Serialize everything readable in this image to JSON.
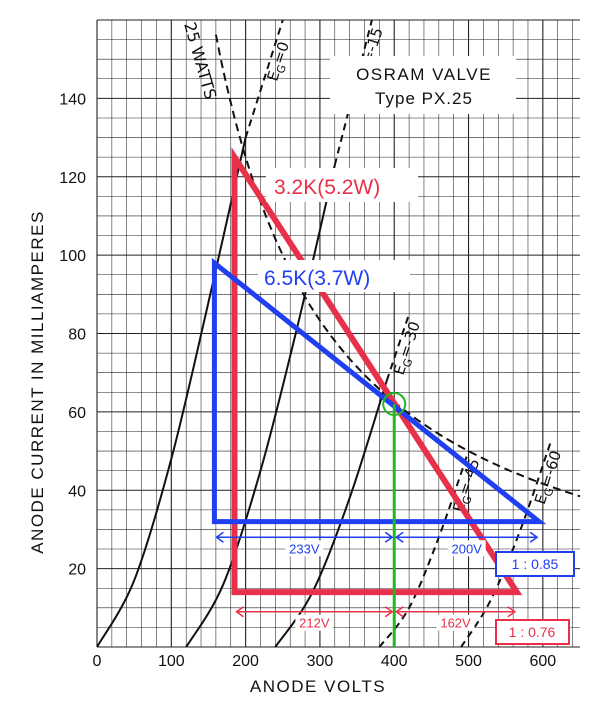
{
  "chart_data": {
    "type": "line",
    "title": "OSRAM VALVE",
    "subtitle": "Type PX.25",
    "xlabel": "ANODE VOLTS",
    "ylabel": "ANODE CURRENT IN MILLIAMPERES",
    "xlim": [
      0,
      650
    ],
    "ylim": [
      0,
      160
    ],
    "x_ticks": [
      "0",
      "100",
      "200",
      "300",
      "400",
      "500",
      "600"
    ],
    "y_ticks": [
      "20",
      "40",
      "60",
      "80",
      "100",
      "120",
      "140"
    ],
    "grid": true,
    "dissipation_curve": {
      "label": "25 WATTS",
      "watts": 25
    },
    "series": [
      {
        "name": "EG=0",
        "label_prefix": "E",
        "label_sub": "G",
        "label_value": "=0",
        "style": "solid-then-dashed",
        "x": [
          0,
          50,
          100,
          150,
          200,
          250
        ],
        "y": [
          0,
          17,
          48,
          88,
          130,
          160
        ]
      },
      {
        "name": "EG=-15",
        "label_prefix": "E",
        "label_sub": "G",
        "label_value": "=-15",
        "style": "solid-then-dashed",
        "x": [
          120,
          170,
          220,
          270,
          320,
          370
        ],
        "y": [
          0,
          16,
          45,
          82,
          123,
          160
        ]
      },
      {
        "name": "EG=-30",
        "label_prefix": "E",
        "label_sub": "G",
        "label_value": "=-30",
        "style": "solid-then-dashed",
        "x": [
          240,
          290,
          340,
          390,
          420
        ],
        "y": [
          0,
          14,
          38,
          68,
          85
        ]
      },
      {
        "name": "EG=-45",
        "label_prefix": "E",
        "label_sub": "G",
        "label_value": "=-45",
        "style": "dashed",
        "x": [
          380,
          420,
          460,
          500
        ],
        "y": [
          0,
          10,
          28,
          50
        ]
      },
      {
        "name": "EG=-60",
        "label_prefix": "E",
        "label_sub": "G",
        "label_value": "=-60",
        "style": "dashed",
        "x": [
          490,
          530,
          570,
          610
        ],
        "y": [
          0,
          12,
          30,
          52
        ]
      }
    ],
    "load_lines": [
      {
        "label": "3.2K(5.2W)",
        "color": "#e8304a",
        "apex": [
          185,
          125
        ],
        "base_left": [
          185,
          14
        ],
        "base_right": [
          565,
          14
        ]
      },
      {
        "label": "6.5K(3.7W)",
        "color": "#1f3ff0",
        "apex": [
          158,
          98
        ],
        "base_left": [
          158,
          32
        ],
        "base_right": [
          595,
          32
        ]
      }
    ],
    "operating_point": {
      "x": 400,
      "y": 62,
      "color": "#22b822"
    },
    "dimensions": [
      {
        "color": "#1f3ff0",
        "y": 28,
        "segments": [
          {
            "from": 158,
            "to": 400,
            "label": "233V"
          },
          {
            "from": 400,
            "to": 595,
            "label": "200V"
          }
        ],
        "ratio": "1 : 0.85"
      },
      {
        "color": "#e8304a",
        "y": 9,
        "segments": [
          {
            "from": 185,
            "to": 400,
            "label": "212V"
          },
          {
            "from": 400,
            "to": 565,
            "label": "162V"
          }
        ],
        "ratio": "1 : 0.76"
      }
    ]
  }
}
